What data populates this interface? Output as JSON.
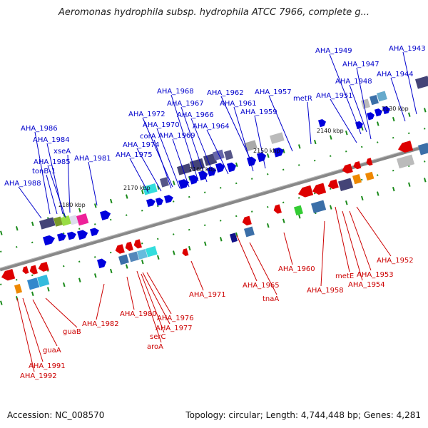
{
  "title": "Aeromonas hydrophila subsp. hydrophila ATCC 7966, complete g...",
  "footer": {
    "accession": "Accession: NC_008570",
    "stats": "Topology: circular; Length: 4,744,448 bp; Genes: 4,281"
  },
  "ticks": [
    "2130 kbp",
    "2140 kbp",
    "2150 kbp",
    "2160 kbp",
    "2170 kbp",
    "2180 kbp"
  ],
  "top_labels": [
    "AHA_1943",
    "AHA_1949",
    "AHA_1947",
    "AHA_1944",
    "AHA_1948",
    "AHA_1951",
    "metR",
    "AHA_1957",
    "AHA_1962",
    "AHA_1961",
    "AHA_1959",
    "AHA_1968",
    "AHA_1967",
    "AHA_1966",
    "AHA_1972",
    "AHA_1970",
    "AHA_1964",
    "corA",
    "AHA_1969",
    "AHA_1974",
    "AHA_1975",
    "AHA_1986",
    "AHA_1984",
    "xseA",
    "AHA_1985",
    "tonB-1",
    "AHA_1981",
    "AHA_1988"
  ],
  "bottom_labels": [
    "AHA_1952",
    "AHA_1953",
    "metE",
    "AHA_1954",
    "AHA_1958",
    "AHA_1960",
    "tnaA",
    "AHA_1965",
    "AHA_1971",
    "AHA_1982",
    "AHA_1980",
    "AHA_1976",
    "AHA_1977",
    "serC",
    "aroA",
    "guaB",
    "guaA",
    "AHA_1991",
    "AHA_1992"
  ],
  "colors": {
    "forward": "#0000dd",
    "reverse": "#dd0000",
    "label_top": "#0000cc",
    "label_bottom": "#cc0000",
    "backbone": "#888888"
  }
}
